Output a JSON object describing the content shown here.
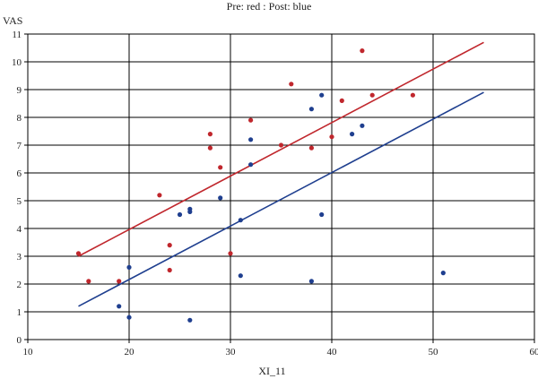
{
  "chart_data": {
    "type": "scatter",
    "title": "Pre: red : Post: blue",
    "xlabel": "XI_11",
    "ylabel": "VAS",
    "xlim": [
      10,
      60
    ],
    "ylim": [
      0,
      11
    ],
    "xticks": [
      10,
      20,
      30,
      40,
      50,
      60
    ],
    "yticks": [
      0,
      1,
      2,
      3,
      4,
      5,
      6,
      7,
      8,
      9,
      10,
      11
    ],
    "grid": true,
    "series": [
      {
        "color": "#c0272d",
        "points": [
          {
            "x": 15,
            "y": 3.1
          },
          {
            "x": 16,
            "y": 2.1
          },
          {
            "x": 19,
            "y": 2.1
          },
          {
            "x": 23,
            "y": 5.2
          },
          {
            "x": 24,
            "y": 3.4
          },
          {
            "x": 24,
            "y": 2.5
          },
          {
            "x": 28,
            "y": 7.4
          },
          {
            "x": 28,
            "y": 6.9
          },
          {
            "x": 29,
            "y": 6.2
          },
          {
            "x": 30,
            "y": 3.1
          },
          {
            "x": 32,
            "y": 7.9
          },
          {
            "x": 35,
            "y": 7.0
          },
          {
            "x": 36,
            "y": 9.2
          },
          {
            "x": 38,
            "y": 6.9
          },
          {
            "x": 40,
            "y": 7.3
          },
          {
            "x": 41,
            "y": 8.6
          },
          {
            "x": 43,
            "y": 10.4
          },
          {
            "x": 44,
            "y": 8.8
          },
          {
            "x": 48,
            "y": 8.8
          }
        ],
        "fit": {
          "x": [
            15,
            55
          ],
          "y": [
            3.0,
            10.7
          ]
        }
      },
      {
        "color": "#1f3f8f",
        "points": [
          {
            "x": 19,
            "y": 1.2
          },
          {
            "x": 20,
            "y": 2.6
          },
          {
            "x": 20,
            "y": 0.8
          },
          {
            "x": 25,
            "y": 4.5
          },
          {
            "x": 26,
            "y": 4.7
          },
          {
            "x": 26,
            "y": 4.6
          },
          {
            "x": 26,
            "y": 0.7
          },
          {
            "x": 29,
            "y": 5.1
          },
          {
            "x": 31,
            "y": 4.3
          },
          {
            "x": 31,
            "y": 2.3
          },
          {
            "x": 32,
            "y": 7.2
          },
          {
            "x": 32,
            "y": 6.3
          },
          {
            "x": 38,
            "y": 8.3
          },
          {
            "x": 38,
            "y": 2.1
          },
          {
            "x": 39,
            "y": 8.8
          },
          {
            "x": 39,
            "y": 4.5
          },
          {
            "x": 42,
            "y": 7.4
          },
          {
            "x": 43,
            "y": 7.7
          },
          {
            "x": 51,
            "y": 2.4
          }
        ],
        "fit": {
          "x": [
            15,
            55
          ],
          "y": [
            1.2,
            8.9
          ]
        }
      }
    ]
  }
}
